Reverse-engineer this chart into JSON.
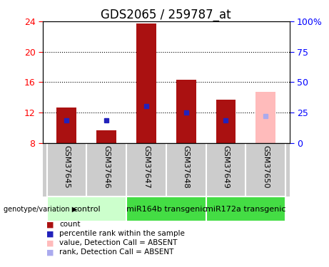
{
  "title": "GDS2065 / 259787_at",
  "samples": [
    "GSM37645",
    "GSM37646",
    "GSM37647",
    "GSM37648",
    "GSM37649",
    "GSM37650"
  ],
  "count_values": [
    12.7,
    9.7,
    23.7,
    16.3,
    13.7,
    14.7
  ],
  "rank_values": [
    11.0,
    11.0,
    12.8,
    12.0,
    11.0,
    11.5
  ],
  "baseline": 8.0,
  "ylim_left": [
    8,
    24
  ],
  "ylim_right": [
    0,
    100
  ],
  "absent_flags": [
    false,
    false,
    false,
    false,
    false,
    true
  ],
  "group_configs": [
    {
      "start": 0,
      "end": 2,
      "color": "#ccffcc",
      "label": "control"
    },
    {
      "start": 2,
      "end": 4,
      "color": "#44dd44",
      "label": "miR164b transgenic"
    },
    {
      "start": 4,
      "end": 6,
      "color": "#44dd44",
      "label": "miR172a transgenic"
    }
  ],
  "bar_color_present": "#aa1111",
  "bar_color_absent": "#ffbbbb",
  "rank_color_present": "#2222bb",
  "rank_color_absent": "#aaaaee",
  "yticks_left": [
    8,
    12,
    16,
    20,
    24
  ],
  "yticks_right": [
    0,
    25,
    50,
    75,
    100
  ],
  "yticks_right_labels": [
    "0",
    "25",
    "50",
    "75",
    "100%"
  ],
  "hgrid_at": [
    12,
    16,
    20
  ],
  "title_fontsize": 12,
  "tick_fontsize": 9,
  "sample_fontsize": 8,
  "group_fontsize": 8,
  "legend_fontsize": 8,
  "background_color": "#ffffff",
  "plot_bg_color": "#ffffff",
  "sample_box_color": "#cccccc",
  "bar_width": 0.5
}
